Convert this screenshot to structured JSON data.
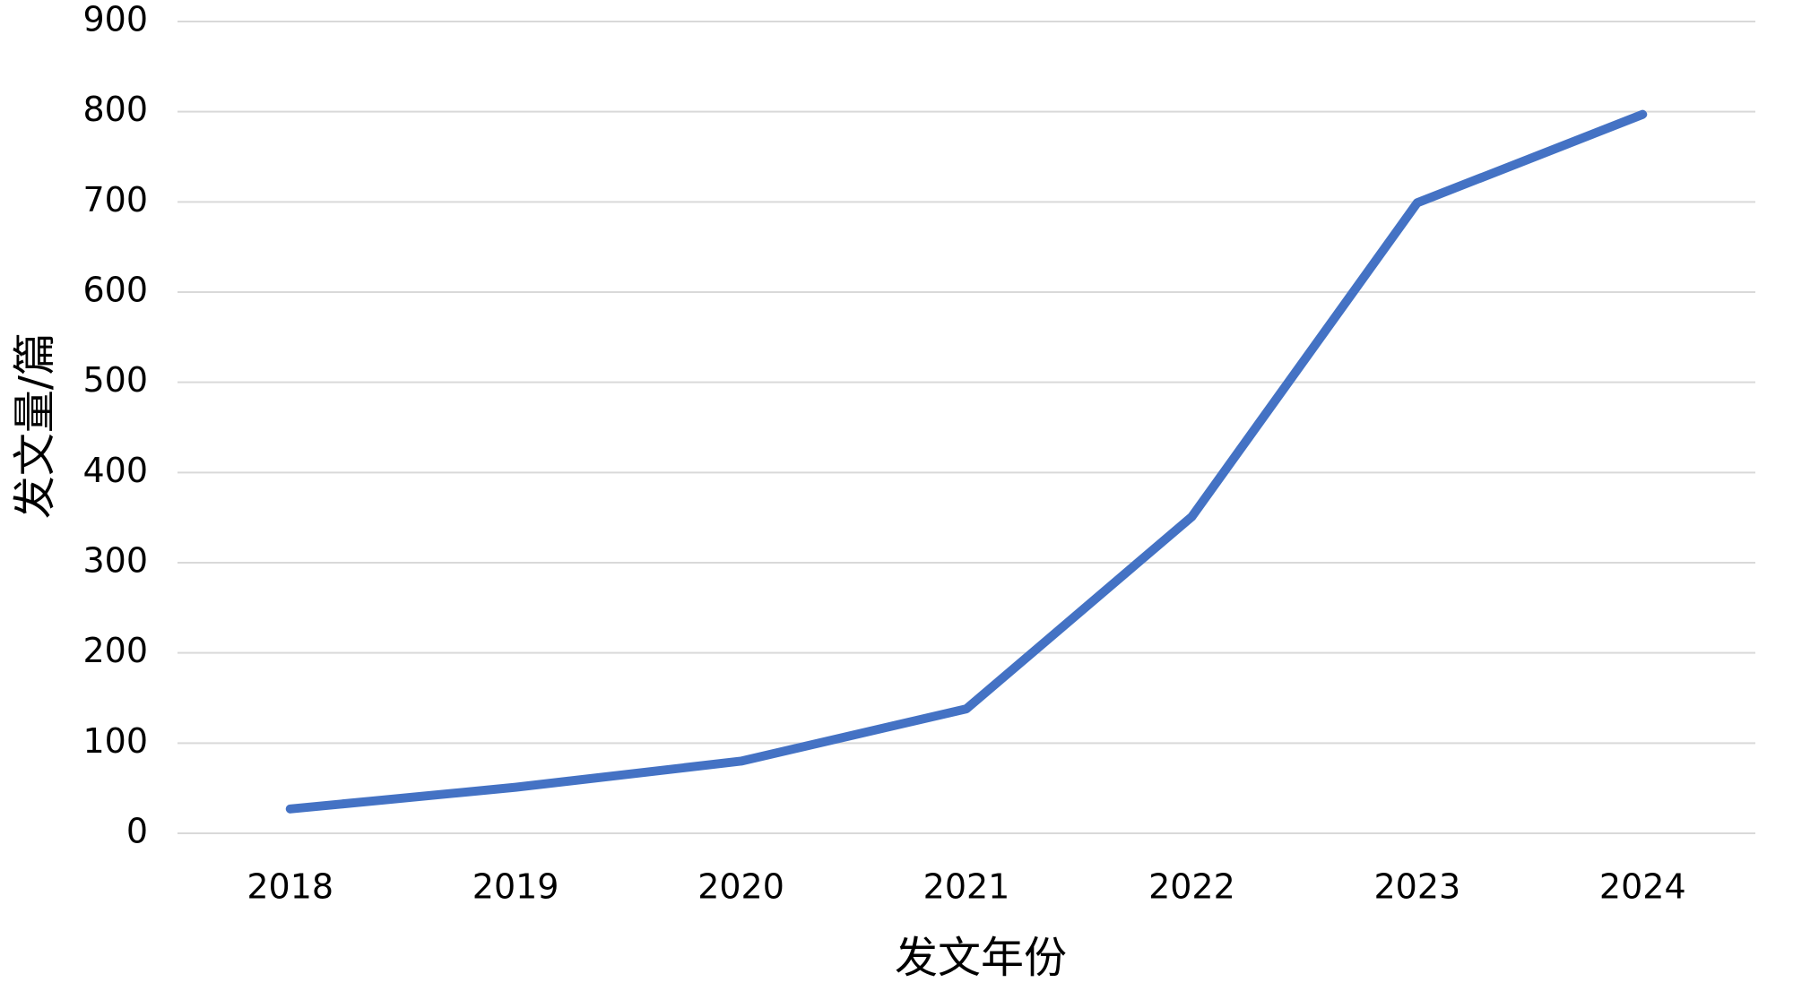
{
  "chart_data": {
    "type": "line",
    "categories": [
      "2018",
      "2019",
      "2020",
      "2021",
      "2022",
      "2023",
      "2024"
    ],
    "series": [
      {
        "color": "#4472c4",
        "values": [
          27,
          51,
          80,
          138,
          351,
          699,
          797
        ]
      }
    ],
    "ylim": [
      0,
      900
    ],
    "yticks": [
      0,
      100,
      200,
      300,
      400,
      500,
      600,
      700,
      800,
      900
    ],
    "grid": true,
    "x_label": "发文年份",
    "y_label": "发文量/篇"
  }
}
